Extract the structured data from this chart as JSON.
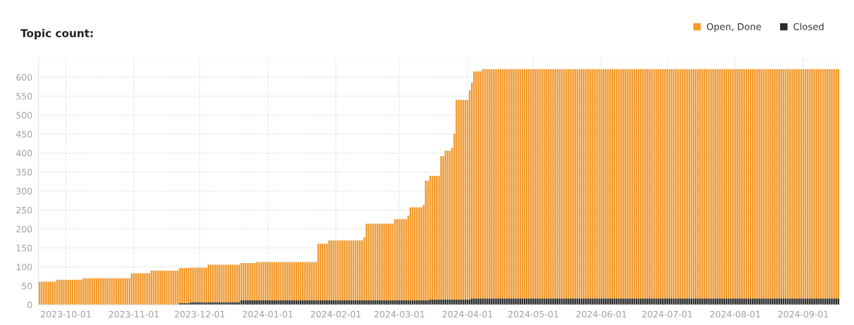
{
  "chart_data": {
    "type": "bar",
    "title": "Topic count:",
    "stacked": true,
    "grid": true,
    "legend": "top right",
    "x": [
      "2023-09-19",
      "2023-09-20",
      "2023-09-21",
      "2023-09-22",
      "2023-09-23",
      "2023-09-24",
      "2023-09-25",
      "2023-09-26",
      "2023-09-27",
      "2023-09-28",
      "2023-09-29",
      "2023-09-30",
      "2023-10-01",
      "2023-10-02",
      "2023-10-03",
      "2023-10-04",
      "2023-10-05",
      "2023-10-06",
      "2023-10-07",
      "2023-10-08",
      "2023-10-09",
      "2023-10-10",
      "2023-10-11",
      "2023-10-12",
      "2023-10-13",
      "2023-10-14",
      "2023-10-15",
      "2023-10-16",
      "2023-10-17",
      "2023-10-18",
      "2023-10-19",
      "2023-10-20",
      "2023-10-21",
      "2023-10-22",
      "2023-10-23",
      "2023-10-24",
      "2023-10-25",
      "2023-10-26",
      "2023-10-27",
      "2023-10-28",
      "2023-10-29",
      "2023-10-30",
      "2023-10-31",
      "2023-11-01",
      "2023-11-02",
      "2023-11-03",
      "2023-11-04",
      "2023-11-05",
      "2023-11-06",
      "2023-11-07",
      "2023-11-08",
      "2023-11-09",
      "2023-11-10",
      "2023-11-11",
      "2023-11-12",
      "2023-11-13",
      "2023-11-14",
      "2023-11-15",
      "2023-11-16",
      "2023-11-17",
      "2023-11-18",
      "2023-11-19",
      "2023-11-20",
      "2023-11-21",
      "2023-11-22",
      "2023-11-23",
      "2023-11-24",
      "2023-11-25",
      "2023-11-26",
      "2023-11-27",
      "2023-11-28",
      "2023-11-29",
      "2023-11-30",
      "2023-12-01",
      "2023-12-02",
      "2023-12-03",
      "2023-12-04",
      "2023-12-05",
      "2023-12-06",
      "2023-12-07",
      "2023-12-08",
      "2023-12-09",
      "2023-12-10",
      "2023-12-11",
      "2023-12-12",
      "2023-12-13",
      "2023-12-14",
      "2023-12-15",
      "2023-12-16",
      "2023-12-17",
      "2023-12-18",
      "2023-12-19",
      "2023-12-20",
      "2023-12-21",
      "2023-12-22",
      "2023-12-23",
      "2023-12-24",
      "2023-12-25",
      "2023-12-26",
      "2023-12-27",
      "2023-12-28",
      "2023-12-29",
      "2023-12-30",
      "2023-12-31",
      "2024-01-01",
      "2024-01-02",
      "2024-01-03",
      "2024-01-04",
      "2024-01-05",
      "2024-01-06",
      "2024-01-07",
      "2024-01-08",
      "2024-01-09",
      "2024-01-10",
      "2024-01-11",
      "2024-01-12",
      "2024-01-13",
      "2024-01-14",
      "2024-01-15",
      "2024-01-16",
      "2024-01-17",
      "2024-01-18",
      "2024-01-19",
      "2024-01-20",
      "2024-01-21",
      "2024-01-22",
      "2024-01-23",
      "2024-01-24",
      "2024-01-25",
      "2024-01-26",
      "2024-01-27",
      "2024-01-28",
      "2024-01-29",
      "2024-01-30",
      "2024-01-31",
      "2024-02-01",
      "2024-02-02",
      "2024-02-03",
      "2024-02-04",
      "2024-02-05",
      "2024-02-06",
      "2024-02-07",
      "2024-02-08",
      "2024-02-09",
      "2024-02-10",
      "2024-02-11",
      "2024-02-12",
      "2024-02-13",
      "2024-02-14",
      "2024-02-15",
      "2024-02-16",
      "2024-02-17",
      "2024-02-18",
      "2024-02-19",
      "2024-02-20",
      "2024-02-21",
      "2024-02-22",
      "2024-02-23",
      "2024-02-24",
      "2024-02-25",
      "2024-02-26",
      "2024-02-27",
      "2024-02-28",
      "2024-02-29",
      "2024-03-01",
      "2024-03-02",
      "2024-03-03",
      "2024-03-04",
      "2024-03-05",
      "2024-03-06",
      "2024-03-07",
      "2024-03-08",
      "2024-03-09",
      "2024-03-10",
      "2024-03-11",
      "2024-03-12",
      "2024-03-13",
      "2024-03-14",
      "2024-03-15",
      "2024-03-16",
      "2024-03-17",
      "2024-03-18",
      "2024-03-19",
      "2024-03-20",
      "2024-03-21",
      "2024-03-22",
      "2024-03-23",
      "2024-03-24",
      "2024-03-25",
      "2024-03-26",
      "2024-03-27",
      "2024-03-28",
      "2024-03-29",
      "2024-03-30",
      "2024-03-31",
      "2024-04-01",
      "2024-04-02",
      "2024-04-03",
      "2024-04-04",
      "2024-04-05",
      "2024-04-06",
      "2024-04-07",
      "2024-04-08",
      "2024-04-09",
      "2024-04-10",
      "2024-04-11",
      "2024-04-12",
      "2024-04-13",
      "2024-04-14",
      "2024-04-15",
      "2024-04-16",
      "2024-04-17",
      "2024-04-18",
      "2024-04-19",
      "2024-04-20",
      "2024-04-21",
      "2024-04-22",
      "2024-04-23",
      "2024-04-24",
      "2024-04-25",
      "2024-04-26",
      "2024-04-27",
      "2024-04-28",
      "2024-04-29",
      "2024-04-30",
      "2024-05-01",
      "2024-05-02",
      "2024-05-03",
      "2024-05-04",
      "2024-05-05",
      "2024-05-06",
      "2024-05-07",
      "2024-05-08",
      "2024-05-09",
      "2024-05-10",
      "2024-05-11",
      "2024-05-12",
      "2024-05-13",
      "2024-05-14",
      "2024-05-15",
      "2024-05-16",
      "2024-05-17",
      "2024-05-18",
      "2024-05-19",
      "2024-05-20",
      "2024-05-21",
      "2024-05-22",
      "2024-05-23",
      "2024-05-24",
      "2024-05-25",
      "2024-05-26",
      "2024-05-27",
      "2024-05-28",
      "2024-05-29",
      "2024-05-30",
      "2024-05-31",
      "2024-06-01",
      "2024-06-02",
      "2024-06-03",
      "2024-06-04",
      "2024-06-05",
      "2024-06-06",
      "2024-06-07",
      "2024-06-08",
      "2024-06-09",
      "2024-06-10",
      "2024-06-11",
      "2024-06-12",
      "2024-06-13",
      "2024-06-14",
      "2024-06-15",
      "2024-06-16",
      "2024-06-17",
      "2024-06-18",
      "2024-06-19",
      "2024-06-20",
      "2024-06-21",
      "2024-06-22",
      "2024-06-23",
      "2024-06-24",
      "2024-06-25",
      "2024-06-26",
      "2024-06-27",
      "2024-06-28",
      "2024-06-29",
      "2024-06-30",
      "2024-07-01",
      "2024-07-02",
      "2024-07-03",
      "2024-07-04",
      "2024-07-05",
      "2024-07-06",
      "2024-07-07",
      "2024-07-08",
      "2024-07-09",
      "2024-07-10",
      "2024-07-11",
      "2024-07-12",
      "2024-07-13",
      "2024-07-14",
      "2024-07-15",
      "2024-07-16",
      "2024-07-17",
      "2024-07-18",
      "2024-07-19",
      "2024-07-20",
      "2024-07-21",
      "2024-07-22",
      "2024-07-23",
      "2024-07-24",
      "2024-07-25",
      "2024-07-26",
      "2024-07-27",
      "2024-07-28",
      "2024-07-29",
      "2024-07-30",
      "2024-07-31",
      "2024-08-01",
      "2024-08-02",
      "2024-08-03",
      "2024-08-04",
      "2024-08-05",
      "2024-08-06",
      "2024-08-07",
      "2024-08-08",
      "2024-08-09",
      "2024-08-10",
      "2024-08-11",
      "2024-08-12",
      "2024-08-13",
      "2024-08-14",
      "2024-08-15",
      "2024-08-16",
      "2024-08-17",
      "2024-08-18",
      "2024-08-19",
      "2024-08-20",
      "2024-08-21",
      "2024-08-22",
      "2024-08-23",
      "2024-08-24",
      "2024-08-25",
      "2024-08-26",
      "2024-08-27",
      "2024-08-28",
      "2024-08-29",
      "2024-08-30",
      "2024-08-31",
      "2024-09-01",
      "2024-09-02",
      "2024-09-03",
      "2024-09-04",
      "2024-09-05",
      "2024-09-06",
      "2024-09-07",
      "2024-09-08",
      "2024-09-09",
      "2024-09-10",
      "2024-09-11",
      "2024-09-12",
      "2024-09-13",
      "2024-09-14",
      "2024-09-15",
      "2024-09-16",
      "2024-09-17"
    ],
    "series": [
      {
        "name": "Closed",
        "color": "#2b2b2b",
        "values": [
          null,
          null,
          null,
          null,
          null,
          null,
          null,
          null,
          null,
          null,
          null,
          null,
          null,
          null,
          null,
          null,
          null,
          null,
          null,
          null,
          null,
          null,
          null,
          null,
          null,
          null,
          null,
          null,
          null,
          null,
          null,
          null,
          null,
          null,
          null,
          null,
          null,
          null,
          null,
          null,
          null,
          null,
          null,
          null,
          null,
          null,
          null,
          null,
          null,
          null,
          null,
          null,
          null,
          null,
          null,
          null,
          null,
          null,
          null,
          null,
          null,
          null,
          null,
          null,
          5,
          5,
          5,
          5,
          5,
          7,
          7,
          7,
          7,
          7,
          7,
          7,
          7,
          7,
          7,
          7,
          7,
          7,
          7,
          7,
          7,
          7,
          7,
          7,
          7,
          7,
          7,
          7,
          12,
          12,
          12,
          12,
          12,
          12,
          12,
          12,
          12,
          12,
          12,
          12,
          12,
          12,
          12,
          12,
          12,
          12,
          12,
          12,
          12,
          12,
          12,
          12,
          12,
          12,
          12,
          12,
          12,
          12,
          12,
          12,
          12,
          12,
          12,
          12,
          12,
          12,
          12,
          12,
          12,
          12,
          12,
          12,
          12,
          12,
          12,
          12,
          12,
          12,
          12,
          12,
          12,
          12,
          12,
          12,
          12,
          12,
          12,
          12,
          12,
          12,
          12,
          12,
          12,
          12,
          12,
          12,
          12,
          12,
          12,
          12,
          12,
          12,
          12,
          12,
          12,
          12,
          12,
          12,
          12,
          12,
          12,
          12,
          12,
          12,
          14,
          14,
          14,
          14,
          14,
          14,
          14,
          14,
          14,
          14,
          14,
          14,
          14,
          14,
          14,
          14,
          14,
          14,
          14,
          17,
          17,
          17,
          17,
          17,
          17,
          17,
          17,
          17,
          17,
          17,
          17,
          17,
          17,
          17,
          17,
          17,
          17,
          17,
          17,
          17,
          17,
          17,
          17,
          17,
          17,
          17,
          17,
          17,
          17,
          17,
          17,
          17,
          17,
          17,
          17,
          17,
          17,
          17,
          17,
          17,
          17,
          17,
          17,
          17,
          17,
          17,
          17,
          17,
          17,
          17,
          17,
          17,
          17,
          17,
          17,
          17,
          17,
          17,
          17,
          17,
          17,
          17,
          17,
          17,
          17,
          17,
          17,
          17,
          17,
          17,
          17,
          17,
          17,
          17,
          17,
          17,
          17,
          17,
          17,
          17,
          17,
          17,
          17,
          17,
          17,
          17,
          17,
          17,
          17,
          17,
          17,
          17,
          17,
          17,
          17,
          17,
          17,
          17,
          17,
          17,
          17,
          17,
          17,
          17,
          17,
          17,
          17,
          17,
          17,
          17,
          17,
          17,
          17,
          17,
          17,
          17,
          17,
          17,
          17,
          17,
          17,
          17,
          17,
          17,
          17,
          17,
          17,
          17,
          17,
          17,
          17,
          17,
          17,
          17,
          17,
          17,
          17,
          17,
          17,
          17,
          17,
          17,
          17,
          17,
          17,
          17,
          17,
          17,
          17,
          17,
          17,
          17,
          17,
          17,
          17,
          17,
          17,
          17,
          17,
          17,
          17,
          17,
          17,
          17,
          17,
          17,
          17
        ]
      },
      {
        "name": "Open, Done",
        "color": "#f29a2e",
        "values": [
          61,
          61,
          61,
          61,
          61,
          61,
          61,
          61,
          66,
          66,
          66,
          66,
          66,
          66,
          66,
          66,
          66,
          66,
          66,
          66,
          70,
          70,
          70,
          70,
          70,
          70,
          70,
          70,
          70,
          70,
          70,
          70,
          70,
          70,
          70,
          70,
          70,
          70,
          70,
          70,
          70,
          70,
          83,
          83,
          83,
          83,
          83,
          83,
          83,
          83,
          83,
          90,
          90,
          90,
          90,
          90,
          90,
          90,
          90,
          90,
          90,
          90,
          90,
          90,
          92,
          92,
          92,
          92,
          92,
          91,
          91,
          91,
          91,
          91,
          91,
          91,
          91,
          99,
          99,
          99,
          99,
          99,
          99,
          99,
          99,
          99,
          99,
          99,
          99,
          99,
          99,
          99,
          98,
          98,
          98,
          98,
          98,
          98,
          98,
          101,
          101,
          101,
          101,
          101,
          101,
          101,
          101,
          101,
          101,
          101,
          101,
          101,
          101,
          101,
          101,
          101,
          101,
          101,
          101,
          101,
          101,
          101,
          101,
          101,
          101,
          101,
          101,
          149,
          149,
          149,
          149,
          149,
          158,
          158,
          158,
          158,
          158,
          158,
          158,
          158,
          158,
          158,
          158,
          158,
          158,
          158,
          158,
          158,
          166,
          202,
          202,
          202,
          202,
          202,
          202,
          202,
          202,
          202,
          202,
          202,
          202,
          202,
          214,
          214,
          214,
          214,
          214,
          214,
          223,
          245,
          245,
          245,
          245,
          245,
          245,
          251,
          315,
          315,
          326,
          326,
          326,
          326,
          326,
          378,
          378,
          392,
          392,
          392,
          400,
          437,
          526,
          526,
          526,
          526,
          526,
          526,
          551,
          569,
          598,
          598,
          598,
          598,
          604,
          604,
          604,
          604,
          604,
          604,
          604,
          604,
          604,
          604,
          604,
          604,
          604,
          604,
          604,
          604,
          604,
          604,
          604,
          604,
          604,
          604,
          604,
          604,
          604,
          604,
          604,
          604,
          604,
          604,
          604,
          604,
          604,
          604,
          604,
          604,
          604,
          604,
          604,
          604,
          604,
          604,
          604,
          604,
          604,
          604,
          604,
          604,
          604,
          604,
          604,
          604,
          604,
          604,
          604,
          604,
          604,
          604,
          604,
          604,
          604,
          604,
          604,
          604,
          604,
          604,
          604,
          604,
          604,
          604,
          604,
          604,
          604,
          604,
          604,
          604,
          604,
          604,
          604,
          604,
          604,
          604,
          604,
          604,
          604,
          604,
          604,
          604,
          604,
          604,
          604,
          604,
          604,
          604,
          604,
          604,
          604,
          604,
          604,
          604,
          604,
          604,
          604,
          604,
          604,
          604,
          604,
          604,
          604,
          604,
          604,
          604,
          604,
          604,
          604,
          604,
          604,
          604,
          604,
          604,
          604,
          604,
          604,
          604,
          604,
          604,
          604,
          604,
          604,
          604,
          604,
          604,
          604,
          604,
          604,
          604,
          604,
          604,
          604,
          604,
          604,
          604,
          604,
          604,
          604,
          604,
          604,
          604,
          604,
          604,
          604,
          604,
          604,
          604,
          604,
          604,
          604,
          604,
          604,
          604,
          604,
          604,
          604
        ]
      }
    ],
    "xlim": [
      "2023-09-18T12:00",
      "2024-09-17T12:00"
    ],
    "xticks": [
      {
        "value": "2023-10-01",
        "label": "2023-10-01"
      },
      {
        "value": "2023-11-01",
        "label": "2023-11-01"
      },
      {
        "value": "2023-12-01",
        "label": "2023-12-01"
      },
      {
        "value": "2024-01-01",
        "label": "2024-01-01"
      },
      {
        "value": "2024-02-01",
        "label": "2024-02-01"
      },
      {
        "value": "2024-03-01",
        "label": "2024-03-01"
      },
      {
        "value": "2024-04-01",
        "label": "2024-04-01"
      },
      {
        "value": "2024-05-01",
        "label": "2024-05-01"
      },
      {
        "value": "2024-06-01",
        "label": "2024-06-01"
      },
      {
        "value": "2024-07-01",
        "label": "2024-07-01"
      },
      {
        "value": "2024-08-01",
        "label": "2024-08-01"
      },
      {
        "value": "2024-09-01",
        "label": "2024-09-01"
      }
    ],
    "ylim": [
      0,
      650
    ],
    "yticks": [
      0,
      50,
      100,
      150,
      200,
      250,
      300,
      350,
      400,
      450,
      500,
      550,
      600,
      {
        "value": 650,
        "label": null
      }
    ]
  }
}
